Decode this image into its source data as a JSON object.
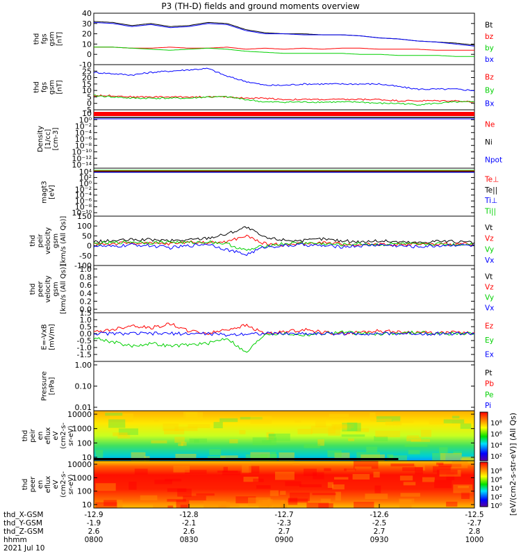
{
  "title": "P3 (TH-D) fields and ground moments overview",
  "colors": {
    "black": "#000000",
    "red": "#ff0000",
    "green": "#00d000",
    "blue": "#0000ff"
  },
  "chart_data": [
    {
      "type": "line",
      "id": "fgs",
      "ylabel": [
        "thd",
        "fgs",
        "gsm",
        "[nT]"
      ],
      "ylim": [
        -10,
        40
      ],
      "ticks": [
        "40",
        "30",
        "20",
        "10",
        "0",
        "-10"
      ],
      "tick_values": [
        40,
        30,
        20,
        10,
        0,
        -10
      ],
      "legend": [
        "Bt",
        "bz",
        "by",
        "bx"
      ],
      "series": [
        {
          "name": "Bt",
          "color": "black",
          "values": [
            32,
            31,
            28,
            30,
            27,
            28,
            31,
            30,
            24,
            21,
            20,
            20,
            19,
            19,
            18,
            16,
            15,
            13,
            12,
            11,
            9
          ]
        },
        {
          "name": "bz",
          "color": "red",
          "values": [
            7,
            7,
            6,
            6,
            7,
            6,
            6,
            7,
            5,
            6,
            5,
            6,
            5,
            6,
            6,
            5,
            5,
            5,
            4,
            4,
            4
          ]
        },
        {
          "name": "by",
          "color": "green",
          "values": [
            7,
            7,
            6,
            5,
            4,
            5,
            6,
            5,
            3,
            2,
            1,
            1,
            1,
            1,
            0,
            0,
            -1,
            -1,
            -1,
            -2,
            -2
          ]
        },
        {
          "name": "bx",
          "color": "blue",
          "values": [
            31,
            30,
            27,
            29,
            26,
            27,
            30,
            29,
            23,
            20,
            20,
            19,
            19,
            19,
            18,
            16,
            15,
            13,
            12,
            10,
            8
          ]
        }
      ]
    },
    {
      "type": "line",
      "id": "fgs_gsm",
      "ylabel": [
        "thd",
        "fgs",
        "gsm",
        "[nT]"
      ],
      "ylim": [
        -5,
        30
      ],
      "ticks": [
        "25",
        "20",
        "15",
        "10",
        "5",
        "0",
        "-5"
      ],
      "tick_values": [
        25,
        20,
        15,
        10,
        5,
        0,
        -5
      ],
      "legend": [
        "Bz",
        "By",
        "Bx"
      ],
      "series": [
        {
          "name": "Bz",
          "color": "red",
          "values": [
            6,
            6,
            5,
            5,
            5,
            5,
            5,
            5,
            4,
            4,
            3,
            3,
            3,
            3,
            3,
            3,
            2,
            2,
            2,
            2,
            1
          ]
        },
        {
          "name": "By",
          "color": "green",
          "values": [
            6,
            5,
            4,
            4,
            4,
            4,
            5,
            5,
            3,
            1,
            1,
            1,
            1,
            1,
            1,
            0,
            0,
            -1,
            0,
            1,
            1
          ]
        },
        {
          "name": "Bx",
          "color": "blue",
          "values": [
            24,
            23,
            22,
            24,
            25,
            26,
            27,
            21,
            17,
            14,
            14,
            15,
            15,
            15,
            15,
            15,
            13,
            11,
            11,
            11,
            10
          ]
        }
      ]
    },
    {
      "type": "line",
      "id": "density",
      "ylabel": [
        "Density",
        "[1/cc]",
        "[cm-3]"
      ],
      "ticks": [
        "10⁲",
        "10⁰",
        "10⁻²",
        "10⁻⁴",
        "10⁻⁶",
        "10⁻⁸",
        "10⁻¹⁰",
        "10⁻¹²",
        "10⁻¹⁴"
      ],
      "legend": [
        "Ne",
        "Ni",
        "Npot"
      ]
    },
    {
      "type": "line",
      "id": "temp",
      "ylabel": [
        "magt3",
        "[eV]"
      ],
      "ticks": [
        "10⁴",
        "10²",
        "10⁰",
        "10⁻²",
        "10⁻⁴",
        "10⁻⁶",
        "10⁻⁸",
        "10⁻¹⁰"
      ],
      "legend": [
        "Te⊥",
        "Te||",
        "Ti⊥",
        "Ti||"
      ]
    },
    {
      "type": "line",
      "id": "peir_v",
      "ylabel": [
        "thd",
        "peir",
        "velocity",
        "gsm",
        "[km/s (All Qs)]"
      ],
      "ylim": [
        -100,
        150
      ],
      "ticks": [
        "150",
        "100",
        "50",
        "0",
        "-50",
        "-100"
      ],
      "tick_values": [
        150,
        100,
        50,
        0,
        -50,
        -100
      ],
      "legend": [
        "Vt",
        "Vz",
        "Vy",
        "Vx"
      ],
      "series": [
        {
          "name": "Vt",
          "color": "black",
          "values": [
            20,
            25,
            30,
            30,
            25,
            30,
            40,
            60,
            95,
            40,
            30,
            25,
            35,
            25,
            20,
            25,
            20,
            15,
            25,
            20,
            15
          ]
        },
        {
          "name": "Vz",
          "color": "red",
          "values": [
            10,
            10,
            15,
            10,
            10,
            20,
            15,
            20,
            50,
            10,
            5,
            10,
            15,
            10,
            5,
            10,
            5,
            10,
            5,
            10,
            5
          ]
        },
        {
          "name": "Vy",
          "color": "green",
          "values": [
            10,
            15,
            20,
            15,
            20,
            15,
            20,
            10,
            -25,
            0,
            10,
            15,
            10,
            5,
            10,
            5,
            10,
            5,
            10,
            5,
            10
          ]
        },
        {
          "name": "Vx",
          "color": "blue",
          "values": [
            0,
            -5,
            5,
            0,
            -10,
            0,
            10,
            -20,
            -45,
            -5,
            0,
            5,
            0,
            -5,
            0,
            5,
            0,
            -5,
            0,
            5,
            0
          ]
        }
      ]
    },
    {
      "type": "line",
      "id": "peer_v",
      "ylabel": [
        "thd",
        "peer",
        "velocity",
        "gsm",
        "[km/s (All Qs)]"
      ],
      "ticks": [
        "1.0",
        "0.8",
        "0.6",
        "0.4",
        "0.2",
        "0.0"
      ],
      "legend": [
        "Vt",
        "Vz",
        "Vy",
        "Vx"
      ]
    },
    {
      "type": "line",
      "id": "efield",
      "ylabel": [
        "E=-VxB",
        "[mV/m]"
      ],
      "ylim": [
        -2,
        1.5
      ],
      "ticks": [
        "1.5",
        "1.0",
        "0.5",
        "0.0",
        "-0.5",
        "-1.0",
        "-1.5"
      ],
      "tick_values": [
        1.5,
        1.0,
        0.5,
        0.0,
        -0.5,
        -1.0,
        -1.5
      ],
      "legend": [
        "Ez",
        "Ey",
        "Ex"
      ],
      "series": [
        {
          "name": "Ez",
          "color": "red",
          "values": [
            0.1,
            0.3,
            0.6,
            0.4,
            0.7,
            0.2,
            0.0,
            0.3,
            0.6,
            0.0,
            0.1,
            0.3,
            0.1,
            0.0,
            0.1,
            0.2,
            0.1,
            0.1,
            0.0,
            0.1,
            0.0
          ]
        },
        {
          "name": "Ey",
          "color": "green",
          "values": [
            -0.3,
            -0.6,
            -0.9,
            -0.7,
            -0.9,
            -0.8,
            -0.7,
            -0.3,
            -1.4,
            0.0,
            0.0,
            -0.1,
            0.0,
            0.1,
            0.0,
            0.0,
            0.0,
            0.1,
            0.0,
            0.0,
            0.0
          ]
        },
        {
          "name": "Ex",
          "color": "blue",
          "values": [
            0,
            0,
            0,
            0,
            0,
            0,
            0,
            -0.1,
            0,
            0,
            0,
            0,
            0,
            0,
            0,
            0,
            0,
            0,
            0,
            0,
            0
          ]
        }
      ]
    },
    {
      "type": "line",
      "id": "pressure",
      "ylabel": [
        "Pressure",
        "[nPa]"
      ],
      "ticks": [
        "1.00",
        "0.10",
        "0.01"
      ],
      "legend": [
        "Pt",
        "Pb",
        "Pe",
        "Pi"
      ],
      "series": [
        {
          "name": "Pt",
          "color": "black",
          "values": [
            0.9,
            0.85,
            0.85,
            0.8,
            0.85,
            0.8,
            0.75,
            0.6,
            0.45,
            0.4,
            0.4,
            0.4,
            0.38,
            0.38,
            0.37,
            0.36,
            0.35,
            0.34,
            0.33,
            0.33,
            0.32
          ]
        },
        {
          "name": "Pb",
          "color": "red",
          "values": [
            0.55,
            0.5,
            0.45,
            0.45,
            0.5,
            0.45,
            0.55,
            0.45,
            0.3,
            0.2,
            0.15,
            0.14,
            0.13,
            0.12,
            0.12,
            0.1,
            0.08,
            0.06,
            0.05,
            0.04,
            0.03
          ]
        },
        {
          "name": "Pe",
          "color": "green",
          "values": [
            0.05,
            0.04,
            0.05,
            0.06,
            0.04,
            0.05,
            0.06,
            0.07,
            0.08,
            0.1,
            0.12,
            0.11,
            0.12,
            0.12,
            0.13,
            0.12,
            0.12,
            0.11,
            0.1,
            0.1,
            0.1
          ]
        },
        {
          "name": "Pi",
          "color": "blue",
          "values": [
            0.25,
            0.22,
            0.2,
            0.21,
            0.2,
            0.22,
            0.2,
            0.2,
            0.22,
            0.24,
            0.25,
            0.25,
            0.26,
            0.26,
            0.26,
            0.25,
            0.26,
            0.26,
            0.25,
            0.25,
            0.25
          ]
        }
      ]
    },
    {
      "type": "heatmap",
      "id": "peir_en",
      "ylabel": [
        "thd",
        "peir",
        "en",
        "eflux",
        "eV",
        "(cm2-s-",
        "sr-eV)"
      ],
      "ticks": [
        "10000",
        "1000",
        "100",
        "10"
      ]
    },
    {
      "type": "heatmap",
      "id": "peer_en",
      "ylabel": [
        "thd",
        "peer",
        "en",
        "eflux",
        "eV",
        "(cm2-s-",
        "sr-eV)"
      ],
      "ticks": [
        "10000",
        "1000",
        "100",
        "10"
      ]
    }
  ],
  "colorbar": {
    "label": "[eV/(cm2-s-sr-eV)] (All Qs)",
    "label_mid": "[eV/(cm2-s-str-eV)] (All Qs)",
    "ticks_top": [
      "10⁸",
      "10⁶",
      "10⁴",
      "10²"
    ],
    "ticks_bottom": [
      "10⁸",
      "10⁶",
      "10⁴",
      "10²",
      "10⁰"
    ]
  },
  "xaxis": {
    "row_labels": [
      "thd_X-GSM",
      "thd_Y-GSM",
      "thd_Z-GSM",
      "hhmm",
      "2021 Jul 10"
    ],
    "columns": [
      [
        "-12.9",
        "-1.9",
        "2.6",
        "0800"
      ],
      [
        "-12.8",
        "-2.1",
        "2.6",
        "0830"
      ],
      [
        "-12.7",
        "-2.3",
        "2.7",
        "0900"
      ],
      [
        "-12.6",
        "-2.5",
        "2.7",
        "0930"
      ],
      [
        "-12.5",
        "-2.7",
        "2.8",
        "1000"
      ]
    ]
  }
}
